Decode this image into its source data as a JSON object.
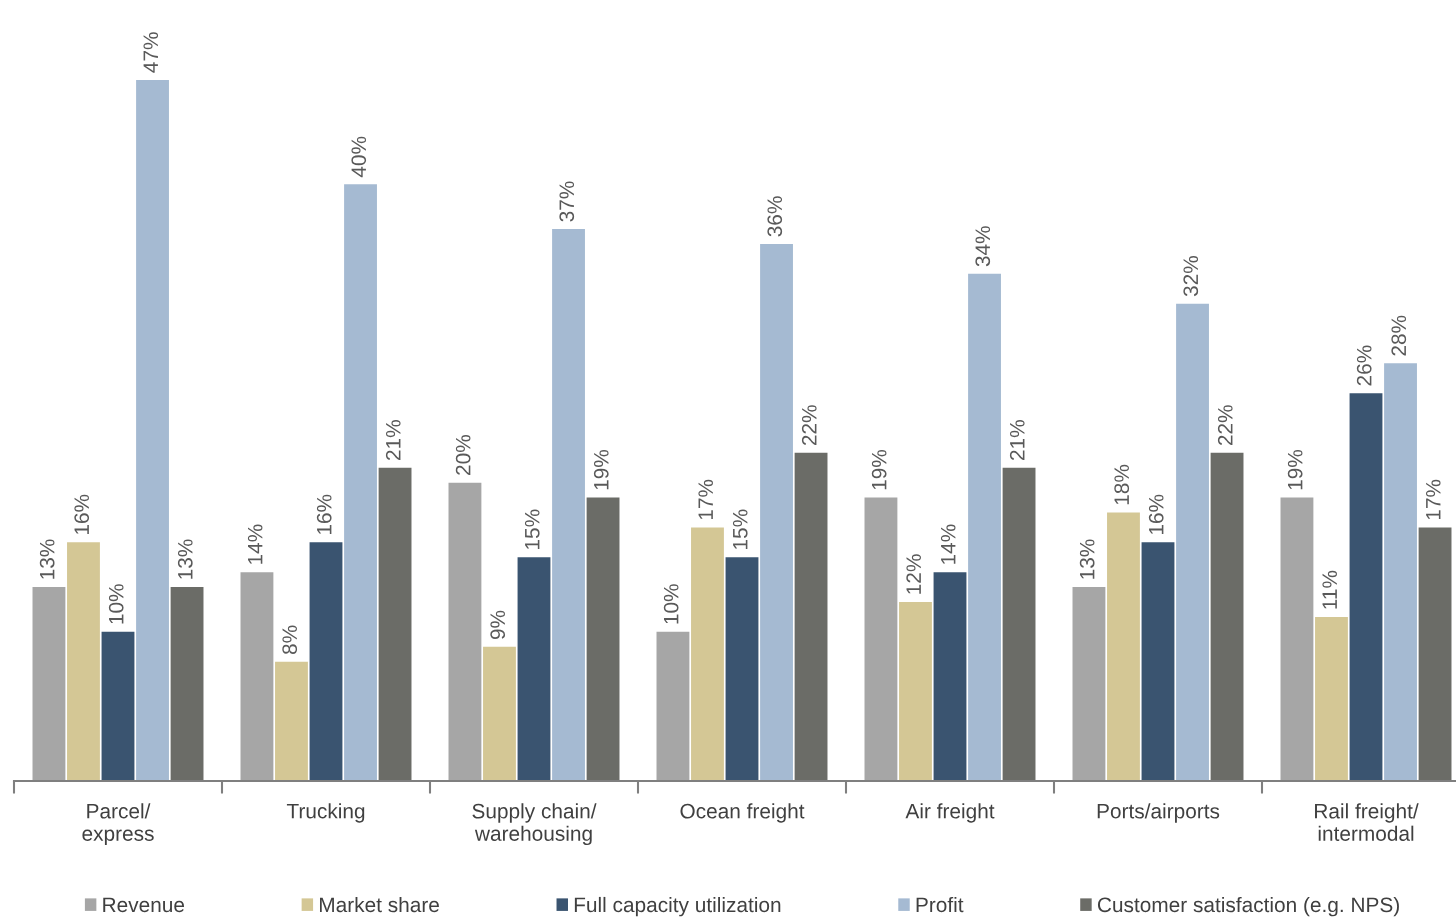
{
  "chart_data": {
    "type": "bar",
    "categories": [
      "Parcel/\nexpress",
      "Trucking",
      "Supply chain/\nwarehousing",
      "Ocean freight",
      "Air freight",
      "Ports/airports",
      "Rail freight/\nintermodal"
    ],
    "series": [
      {
        "name": "Revenue",
        "color": "#a6a6a6",
        "values": [
          13,
          14,
          20,
          10,
          19,
          13,
          19
        ],
        "value_labels": [
          "13%",
          "14%",
          "20%",
          "10%",
          "19%",
          "13%",
          "19%"
        ]
      },
      {
        "name": "Market share",
        "color": "#d4c795",
        "values": [
          16,
          8,
          9,
          17,
          12,
          18,
          11
        ],
        "value_labels": [
          "16%",
          "8%",
          "9%",
          "17%",
          "12%",
          "18%",
          "11%"
        ]
      },
      {
        "name": "Full capacity utilization",
        "color": "#3a5470",
        "values": [
          10,
          16,
          15,
          15,
          14,
          16,
          26
        ],
        "value_labels": [
          "10%",
          "16%",
          "15%",
          "15%",
          "14%",
          "16%",
          "26%"
        ]
      },
      {
        "name": "Profit",
        "color": "#a5bad2",
        "values": [
          47,
          40,
          37,
          36,
          34,
          32,
          28
        ],
        "value_labels": [
          "47%",
          "40%",
          "37%",
          "36%",
          "34%",
          "32%",
          "28%"
        ]
      },
      {
        "name": "Customer satisfaction (e.g. NPS)",
        "color": "#6b6c67",
        "values": [
          13,
          21,
          19,
          22,
          21,
          22,
          17
        ],
        "value_labels": [
          "13%",
          "21%",
          "19%",
          "22%",
          "21%",
          "22%",
          "17%"
        ]
      }
    ],
    "legend": "bottom",
    "grid": false,
    "tick_labels": "x"
  }
}
